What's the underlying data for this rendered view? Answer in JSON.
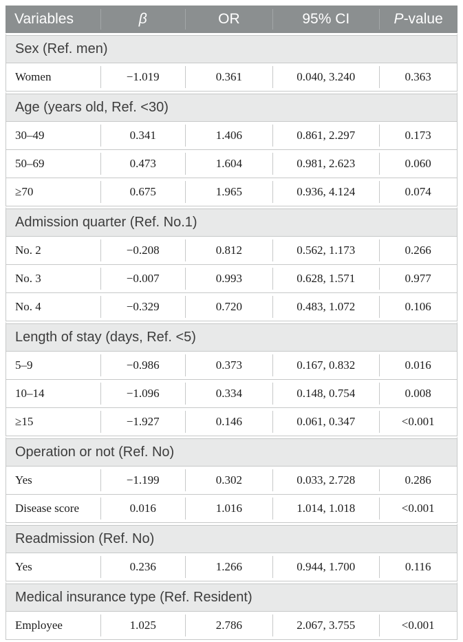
{
  "colors": {
    "header_bg": "#8b8f90",
    "header_text": "#ffffff",
    "header_divider": "#a3a7a8",
    "section_bg": "#e8e9e9",
    "section_text": "#3d3d3d",
    "data_text": "#1c1c1c",
    "border": "#c6c8c8",
    "page_bg": "#ffffff"
  },
  "table": {
    "columns": [
      {
        "label": "Variables",
        "italic": "none",
        "align": "left"
      },
      {
        "label": "β",
        "italic": "all",
        "align": "center"
      },
      {
        "label": "OR",
        "italic": "none",
        "align": "center"
      },
      {
        "label": "95% CI",
        "italic": "none",
        "align": "center"
      },
      {
        "label": "P-value",
        "italic": "first-letter",
        "align": "center"
      }
    ],
    "sections": [
      {
        "header": "Sex (Ref. men)",
        "rows": [
          [
            "Women",
            "−1.019",
            "0.361",
            "0.040, 3.240",
            "0.363"
          ]
        ]
      },
      {
        "header": "Age (years old, Ref. <30)",
        "rows": [
          [
            "30–49",
            "0.341",
            "1.406",
            "0.861, 2.297",
            "0.173"
          ],
          [
            "50–69",
            "0.473",
            "1.604",
            "0.981, 2.623",
            "0.060"
          ],
          [
            "≥70",
            "0.675",
            "1.965",
            "0.936, 4.124",
            "0.074"
          ]
        ]
      },
      {
        "header": "Admission quarter (Ref. No.1)",
        "rows": [
          [
            "No. 2",
            "−0.208",
            "0.812",
            "0.562, 1.173",
            "0.266"
          ],
          [
            "No. 3",
            "−0.007",
            "0.993",
            "0.628, 1.571",
            "0.977"
          ],
          [
            "No. 4",
            "−0.329",
            "0.720",
            "0.483, 1.072",
            "0.106"
          ]
        ]
      },
      {
        "header": "Length of stay (days, Ref. <5)",
        "rows": [
          [
            "5–9",
            "−0.986",
            "0.373",
            "0.167, 0.832",
            "0.016"
          ],
          [
            "10–14",
            "−1.096",
            "0.334",
            "0.148, 0.754",
            "0.008"
          ],
          [
            "≥15",
            "−1.927",
            "0.146",
            "0.061, 0.347",
            "<0.001"
          ]
        ]
      },
      {
        "header": "Operation or not (Ref. No)",
        "rows": [
          [
            "Yes",
            "−1.199",
            "0.302",
            "0.033, 2.728",
            "0.286"
          ],
          [
            "Disease score",
            "0.016",
            "1.016",
            "1.014, 1.018",
            "<0.001"
          ]
        ]
      },
      {
        "header": "Readmission (Ref. No)",
        "rows": [
          [
            "Yes",
            "0.236",
            "1.266",
            "0.944, 1.700",
            "0.116"
          ]
        ]
      },
      {
        "header": "Medical insurance type (Ref. Resident)",
        "rows": [
          [
            "Employee",
            "1.025",
            "2.786",
            "2.067, 3.755",
            "<0.001"
          ]
        ]
      }
    ]
  }
}
